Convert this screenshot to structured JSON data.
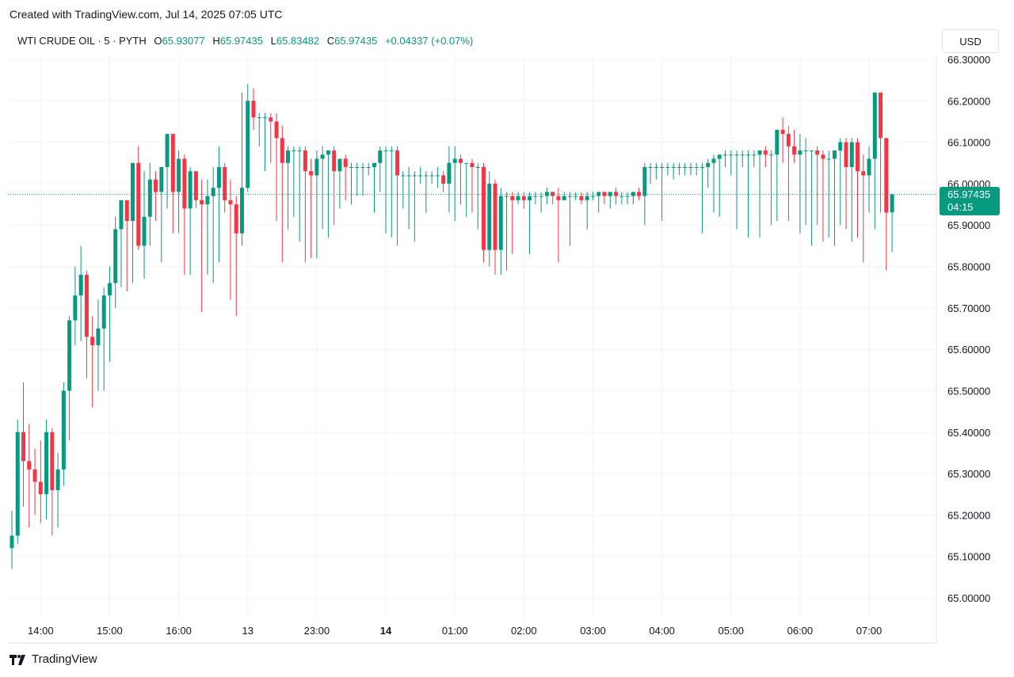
{
  "header": {
    "created_text": "Created with TradingView.com, Jul 14, 2025 07:05 UTC"
  },
  "legend": {
    "symbol": "WTI CRUDE OIL · 5 · PYTH",
    "o_label": "O",
    "o_value": "65.93077",
    "h_label": "H",
    "h_value": "65.97435",
    "l_label": "L",
    "l_value": "65.83482",
    "c_label": "C",
    "c_value": "65.97435",
    "change": "+0.04337 (+0.07%)"
  },
  "currency_button": {
    "label": "USD"
  },
  "price_tag": {
    "price": "65.97435",
    "countdown": "04:15"
  },
  "footer": {
    "brand": "TradingView"
  },
  "colors": {
    "up": "#089981",
    "down": "#f23645",
    "grid": "#f0f3fa",
    "axis_text": "#131722"
  },
  "chart_data": {
    "type": "candlestick",
    "ylim": [
      64.96,
      66.33
    ],
    "y_ticks": [
      65.0,
      65.1,
      65.2,
      65.3,
      65.4,
      65.5,
      65.6,
      65.7,
      65.8,
      65.9,
      66.0,
      66.1,
      66.2,
      66.3
    ],
    "y_tick_labels": [
      "65.00000",
      "65.10000",
      "65.20000",
      "65.30000",
      "65.40000",
      "65.50000",
      "65.60000",
      "65.70000",
      "65.80000",
      "65.90000",
      "66.00000",
      "66.10000",
      "66.20000",
      "66.30000"
    ],
    "x_ticks": [
      {
        "label": "14:00",
        "index": 5,
        "bold": false
      },
      {
        "label": "15:00",
        "index": 17,
        "bold": false
      },
      {
        "label": "16:00",
        "index": 29,
        "bold": false
      },
      {
        "label": "13",
        "index": 41,
        "bold": false
      },
      {
        "label": "23:00",
        "index": 53,
        "bold": false
      },
      {
        "label": "14",
        "index": 65,
        "bold": true
      },
      {
        "label": "01:00",
        "index": 77,
        "bold": false
      },
      {
        "label": "02:00",
        "index": 89,
        "bold": false
      },
      {
        "label": "03:00",
        "index": 101,
        "bold": false
      },
      {
        "label": "04:00",
        "index": 113,
        "bold": false
      },
      {
        "label": "05:00",
        "index": 125,
        "bold": false
      },
      {
        "label": "06:00",
        "index": 137,
        "bold": false
      },
      {
        "label": "07:00",
        "index": 149,
        "bold": false
      }
    ],
    "last_price": 65.97435,
    "candles": [
      {
        "o": 65.12,
        "h": 65.21,
        "l": 65.07,
        "c": 65.15
      },
      {
        "o": 65.15,
        "h": 65.43,
        "l": 65.13,
        "c": 65.4
      },
      {
        "o": 65.4,
        "h": 65.52,
        "l": 65.22,
        "c": 65.33
      },
      {
        "o": 65.33,
        "h": 65.42,
        "l": 65.17,
        "c": 65.31
      },
      {
        "o": 65.31,
        "h": 65.36,
        "l": 65.2,
        "c": 65.28
      },
      {
        "o": 65.28,
        "h": 65.38,
        "l": 65.18,
        "c": 65.25
      },
      {
        "o": 65.25,
        "h": 65.43,
        "l": 65.19,
        "c": 65.4
      },
      {
        "o": 65.4,
        "h": 65.41,
        "l": 65.15,
        "c": 65.26
      },
      {
        "o": 65.26,
        "h": 65.35,
        "l": 65.17,
        "c": 65.31
      },
      {
        "o": 65.31,
        "h": 65.52,
        "l": 65.27,
        "c": 65.5
      },
      {
        "o": 65.5,
        "h": 65.68,
        "l": 65.38,
        "c": 65.67
      },
      {
        "o": 65.67,
        "h": 65.8,
        "l": 65.61,
        "c": 65.73
      },
      {
        "o": 65.73,
        "h": 65.85,
        "l": 65.62,
        "c": 65.78
      },
      {
        "o": 65.78,
        "h": 65.79,
        "l": 65.53,
        "c": 65.63
      },
      {
        "o": 65.63,
        "h": 65.68,
        "l": 65.46,
        "c": 65.61
      },
      {
        "o": 65.61,
        "h": 65.72,
        "l": 65.5,
        "c": 65.65
      },
      {
        "o": 65.65,
        "h": 65.75,
        "l": 65.5,
        "c": 65.73
      },
      {
        "o": 65.73,
        "h": 65.8,
        "l": 65.57,
        "c": 65.76
      },
      {
        "o": 65.76,
        "h": 65.92,
        "l": 65.7,
        "c": 65.89
      },
      {
        "o": 65.89,
        "h": 65.96,
        "l": 65.75,
        "c": 65.96
      },
      {
        "o": 65.96,
        "h": 65.96,
        "l": 65.74,
        "c": 65.91
      },
      {
        "o": 65.91,
        "h": 66.05,
        "l": 65.76,
        "c": 66.05
      },
      {
        "o": 66.05,
        "h": 66.09,
        "l": 65.84,
        "c": 65.85
      },
      {
        "o": 65.85,
        "h": 66.03,
        "l": 65.77,
        "c": 65.92
      },
      {
        "o": 65.92,
        "h": 66.05,
        "l": 65.85,
        "c": 66.01
      },
      {
        "o": 66.01,
        "h": 66.03,
        "l": 65.91,
        "c": 65.98
      },
      {
        "o": 65.98,
        "h": 66.04,
        "l": 65.81,
        "c": 66.04
      },
      {
        "o": 66.04,
        "h": 66.12,
        "l": 65.94,
        "c": 66.12
      },
      {
        "o": 66.12,
        "h": 66.12,
        "l": 65.88,
        "c": 65.98
      },
      {
        "o": 65.98,
        "h": 66.08,
        "l": 65.88,
        "c": 66.06
      },
      {
        "o": 66.06,
        "h": 66.07,
        "l": 65.78,
        "c": 65.94
      },
      {
        "o": 65.94,
        "h": 66.04,
        "l": 65.78,
        "c": 66.03
      },
      {
        "o": 66.03,
        "h": 66.03,
        "l": 65.94,
        "c": 65.96
      },
      {
        "o": 65.96,
        "h": 66.01,
        "l": 65.69,
        "c": 65.95
      },
      {
        "o": 65.95,
        "h": 66.01,
        "l": 65.78,
        "c": 65.97
      },
      {
        "o": 65.97,
        "h": 66.04,
        "l": 65.76,
        "c": 65.99
      },
      {
        "o": 65.99,
        "h": 66.09,
        "l": 65.81,
        "c": 66.04
      },
      {
        "o": 66.04,
        "h": 66.05,
        "l": 65.93,
        "c": 65.96
      },
      {
        "o": 65.96,
        "h": 66.01,
        "l": 65.72,
        "c": 65.95
      },
      {
        "o": 65.95,
        "h": 65.97,
        "l": 65.68,
        "c": 65.88
      },
      {
        "o": 65.88,
        "h": 66.22,
        "l": 65.85,
        "c": 65.99
      },
      {
        "o": 65.99,
        "h": 66.24,
        "l": 65.98,
        "c": 66.2
      },
      {
        "o": 66.2,
        "h": 66.23,
        "l": 66.13,
        "c": 66.16
      },
      {
        "o": 66.16,
        "h": 66.17,
        "l": 66.09,
        "c": 66.16
      },
      {
        "o": 66.16,
        "h": 66.17,
        "l": 66.03,
        "c": 66.16
      },
      {
        "o": 66.16,
        "h": 66.17,
        "l": 66.05,
        "c": 66.15
      },
      {
        "o": 66.15,
        "h": 66.17,
        "l": 65.91,
        "c": 66.11
      },
      {
        "o": 66.11,
        "h": 66.14,
        "l": 65.81,
        "c": 66.05
      },
      {
        "o": 66.05,
        "h": 66.09,
        "l": 65.89,
        "c": 66.08
      },
      {
        "o": 66.08,
        "h": 66.09,
        "l": 65.92,
        "c": 66.08
      },
      {
        "o": 66.08,
        "h": 66.09,
        "l": 65.86,
        "c": 66.08
      },
      {
        "o": 66.08,
        "h": 66.09,
        "l": 65.81,
        "c": 66.03
      },
      {
        "o": 66.03,
        "h": 66.06,
        "l": 65.82,
        "c": 66.02
      },
      {
        "o": 66.02,
        "h": 66.08,
        "l": 65.82,
        "c": 66.06
      },
      {
        "o": 66.06,
        "h": 66.09,
        "l": 65.89,
        "c": 66.07
      },
      {
        "o": 66.07,
        "h": 66.08,
        "l": 65.87,
        "c": 66.08
      },
      {
        "o": 66.08,
        "h": 66.09,
        "l": 65.9,
        "c": 66.03
      },
      {
        "o": 66.03,
        "h": 66.06,
        "l": 65.94,
        "c": 66.06
      },
      {
        "o": 66.06,
        "h": 66.07,
        "l": 65.96,
        "c": 66.04
      },
      {
        "o": 66.04,
        "h": 66.05,
        "l": 65.95,
        "c": 66.04
      },
      {
        "o": 66.04,
        "h": 66.05,
        "l": 65.97,
        "c": 66.04
      },
      {
        "o": 66.04,
        "h": 66.05,
        "l": 65.97,
        "c": 66.04
      },
      {
        "o": 66.04,
        "h": 66.05,
        "l": 66.02,
        "c": 66.04
      },
      {
        "o": 66.04,
        "h": 66.05,
        "l": 65.93,
        "c": 66.05
      },
      {
        "o": 66.05,
        "h": 66.09,
        "l": 65.98,
        "c": 66.08
      },
      {
        "o": 66.08,
        "h": 66.09,
        "l": 65.88,
        "c": 66.08
      },
      {
        "o": 66.08,
        "h": 66.09,
        "l": 65.87,
        "c": 66.08
      },
      {
        "o": 66.08,
        "h": 66.09,
        "l": 65.85,
        "c": 66.02
      },
      {
        "o": 66.02,
        "h": 66.03,
        "l": 65.94,
        "c": 66.02
      },
      {
        "o": 66.02,
        "h": 66.04,
        "l": 65.89,
        "c": 66.02
      },
      {
        "o": 66.02,
        "h": 66.03,
        "l": 65.86,
        "c": 66.02
      },
      {
        "o": 66.02,
        "h": 66.04,
        "l": 66.0,
        "c": 66.02
      },
      {
        "o": 66.02,
        "h": 66.03,
        "l": 65.93,
        "c": 66.02
      },
      {
        "o": 66.02,
        "h": 66.03,
        "l": 66.0,
        "c": 66.02
      },
      {
        "o": 66.02,
        "h": 66.04,
        "l": 65.99,
        "c": 66.02
      },
      {
        "o": 66.02,
        "h": 66.03,
        "l": 65.98,
        "c": 66.0
      },
      {
        "o": 66.0,
        "h": 66.09,
        "l": 65.93,
        "c": 66.05
      },
      {
        "o": 66.05,
        "h": 66.09,
        "l": 65.91,
        "c": 66.06
      },
      {
        "o": 66.06,
        "h": 66.07,
        "l": 65.95,
        "c": 66.05
      },
      {
        "o": 66.05,
        "h": 66.05,
        "l": 65.92,
        "c": 66.05
      },
      {
        "o": 66.05,
        "h": 66.06,
        "l": 65.93,
        "c": 66.04
      },
      {
        "o": 66.04,
        "h": 66.05,
        "l": 65.89,
        "c": 66.04
      },
      {
        "o": 66.04,
        "h": 66.05,
        "l": 65.81,
        "c": 65.84
      },
      {
        "o": 65.84,
        "h": 66.03,
        "l": 65.8,
        "c": 66.0
      },
      {
        "o": 66.0,
        "h": 66.01,
        "l": 65.78,
        "c": 65.84
      },
      {
        "o": 65.84,
        "h": 65.99,
        "l": 65.78,
        "c": 65.97
      },
      {
        "o": 65.97,
        "h": 65.98,
        "l": 65.79,
        "c": 65.97
      },
      {
        "o": 65.97,
        "h": 65.98,
        "l": 65.83,
        "c": 65.96
      },
      {
        "o": 65.96,
        "h": 65.98,
        "l": 65.95,
        "c": 65.97
      },
      {
        "o": 65.97,
        "h": 65.98,
        "l": 65.94,
        "c": 65.96
      },
      {
        "o": 65.96,
        "h": 65.98,
        "l": 65.83,
        "c": 65.97
      },
      {
        "o": 65.97,
        "h": 65.98,
        "l": 65.95,
        "c": 65.97
      },
      {
        "o": 65.97,
        "h": 65.98,
        "l": 65.93,
        "c": 65.97
      },
      {
        "o": 65.97,
        "h": 65.99,
        "l": 65.95,
        "c": 65.98
      },
      {
        "o": 65.98,
        "h": 65.98,
        "l": 65.95,
        "c": 65.97
      },
      {
        "o": 65.97,
        "h": 65.99,
        "l": 65.81,
        "c": 65.96
      },
      {
        "o": 65.96,
        "h": 65.98,
        "l": 65.96,
        "c": 65.97
      },
      {
        "o": 65.97,
        "h": 65.98,
        "l": 65.85,
        "c": 65.97
      },
      {
        "o": 65.97,
        "h": 65.98,
        "l": 65.96,
        "c": 65.97
      },
      {
        "o": 65.97,
        "h": 65.98,
        "l": 65.95,
        "c": 65.96
      },
      {
        "o": 65.96,
        "h": 65.98,
        "l": 65.89,
        "c": 65.97
      },
      {
        "o": 65.97,
        "h": 65.98,
        "l": 65.96,
        "c": 65.97
      },
      {
        "o": 65.97,
        "h": 65.98,
        "l": 65.93,
        "c": 65.98
      },
      {
        "o": 65.98,
        "h": 65.98,
        "l": 65.95,
        "c": 65.97
      },
      {
        "o": 65.97,
        "h": 65.98,
        "l": 65.94,
        "c": 65.98
      },
      {
        "o": 65.98,
        "h": 65.99,
        "l": 65.95,
        "c": 65.97
      },
      {
        "o": 65.97,
        "h": 65.98,
        "l": 65.95,
        "c": 65.97
      },
      {
        "o": 65.97,
        "h": 65.98,
        "l": 65.95,
        "c": 65.97
      },
      {
        "o": 65.97,
        "h": 65.98,
        "l": 65.95,
        "c": 65.98
      },
      {
        "o": 65.98,
        "h": 65.99,
        "l": 65.96,
        "c": 65.97
      },
      {
        "o": 65.97,
        "h": 66.05,
        "l": 65.9,
        "c": 66.04
      },
      {
        "o": 66.04,
        "h": 66.05,
        "l": 66.0,
        "c": 66.04
      },
      {
        "o": 66.04,
        "h": 66.05,
        "l": 66.01,
        "c": 66.04
      },
      {
        "o": 66.04,
        "h": 66.05,
        "l": 65.91,
        "c": 66.04
      },
      {
        "o": 66.04,
        "h": 66.05,
        "l": 66.02,
        "c": 66.04
      },
      {
        "o": 66.04,
        "h": 66.05,
        "l": 66.01,
        "c": 66.04
      },
      {
        "o": 66.04,
        "h": 66.05,
        "l": 66.02,
        "c": 66.04
      },
      {
        "o": 66.04,
        "h": 66.05,
        "l": 66.02,
        "c": 66.04
      },
      {
        "o": 66.04,
        "h": 66.05,
        "l": 66.02,
        "c": 66.04
      },
      {
        "o": 66.04,
        "h": 66.05,
        "l": 66.02,
        "c": 66.04
      },
      {
        "o": 66.04,
        "h": 66.05,
        "l": 65.88,
        "c": 66.04
      },
      {
        "o": 66.04,
        "h": 66.06,
        "l": 65.99,
        "c": 66.05
      },
      {
        "o": 66.05,
        "h": 66.07,
        "l": 65.93,
        "c": 66.06
      },
      {
        "o": 66.06,
        "h": 66.07,
        "l": 65.92,
        "c": 66.07
      },
      {
        "o": 66.07,
        "h": 66.08,
        "l": 66.04,
        "c": 66.07
      },
      {
        "o": 66.07,
        "h": 66.08,
        "l": 66.02,
        "c": 66.07
      },
      {
        "o": 66.07,
        "h": 66.08,
        "l": 65.89,
        "c": 66.07
      },
      {
        "o": 66.07,
        "h": 66.08,
        "l": 66.04,
        "c": 66.07
      },
      {
        "o": 66.07,
        "h": 66.08,
        "l": 65.87,
        "c": 66.07
      },
      {
        "o": 66.07,
        "h": 66.08,
        "l": 66.04,
        "c": 66.07
      },
      {
        "o": 66.07,
        "h": 66.08,
        "l": 65.87,
        "c": 66.08
      },
      {
        "o": 66.08,
        "h": 66.09,
        "l": 66.04,
        "c": 66.07
      },
      {
        "o": 66.07,
        "h": 66.08,
        "l": 65.9,
        "c": 66.07
      },
      {
        "o": 66.07,
        "h": 66.13,
        "l": 65.91,
        "c": 66.13
      },
      {
        "o": 66.13,
        "h": 66.16,
        "l": 66.05,
        "c": 66.12
      },
      {
        "o": 66.12,
        "h": 66.14,
        "l": 65.91,
        "c": 66.09
      },
      {
        "o": 66.09,
        "h": 66.13,
        "l": 66.05,
        "c": 66.07
      },
      {
        "o": 66.07,
        "h": 66.12,
        "l": 65.88,
        "c": 66.08
      },
      {
        "o": 66.08,
        "h": 66.11,
        "l": 65.9,
        "c": 66.08
      },
      {
        "o": 66.08,
        "h": 66.08,
        "l": 65.85,
        "c": 66.08
      },
      {
        "o": 66.08,
        "h": 66.09,
        "l": 65.9,
        "c": 66.07
      },
      {
        "o": 66.07,
        "h": 66.08,
        "l": 65.86,
        "c": 66.06
      },
      {
        "o": 66.06,
        "h": 66.08,
        "l": 65.87,
        "c": 66.06
      },
      {
        "o": 66.06,
        "h": 66.08,
        "l": 65.85,
        "c": 66.08
      },
      {
        "o": 66.08,
        "h": 66.11,
        "l": 65.9,
        "c": 66.1
      },
      {
        "o": 66.1,
        "h": 66.11,
        "l": 65.89,
        "c": 66.04
      },
      {
        "o": 66.04,
        "h": 66.11,
        "l": 65.86,
        "c": 66.1
      },
      {
        "o": 66.1,
        "h": 66.11,
        "l": 65.87,
        "c": 66.03
      },
      {
        "o": 66.03,
        "h": 66.07,
        "l": 65.81,
        "c": 66.02
      },
      {
        "o": 66.02,
        "h": 66.09,
        "l": 65.93,
        "c": 66.06
      },
      {
        "o": 66.06,
        "h": 66.22,
        "l": 65.89,
        "c": 66.22
      },
      {
        "o": 66.22,
        "h": 66.22,
        "l": 65.93,
        "c": 66.11
      },
      {
        "o": 66.11,
        "h": 66.11,
        "l": 65.79,
        "c": 65.93
      },
      {
        "o": 65.93077,
        "h": 65.97435,
        "l": 65.83482,
        "c": 65.97435
      }
    ]
  }
}
